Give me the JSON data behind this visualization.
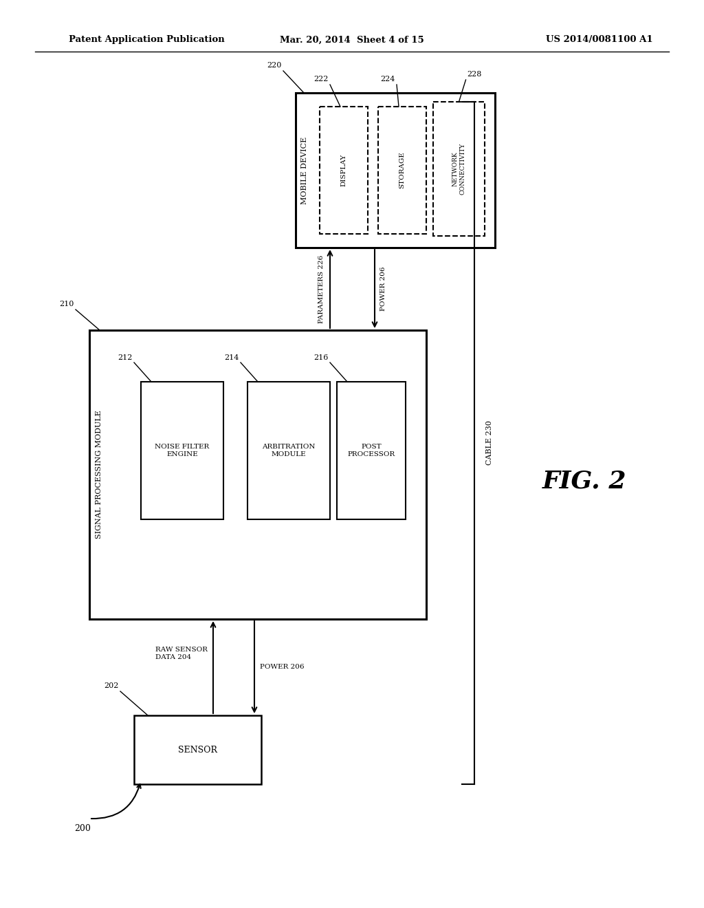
{
  "title_left": "Patent Application Publication",
  "title_mid": "Mar. 20, 2014  Sheet 4 of 15",
  "title_right": "US 2014/0081100 A1",
  "fig_label": "FIG. 2",
  "bg_color": "#ffffff",
  "line_color": "#000000"
}
